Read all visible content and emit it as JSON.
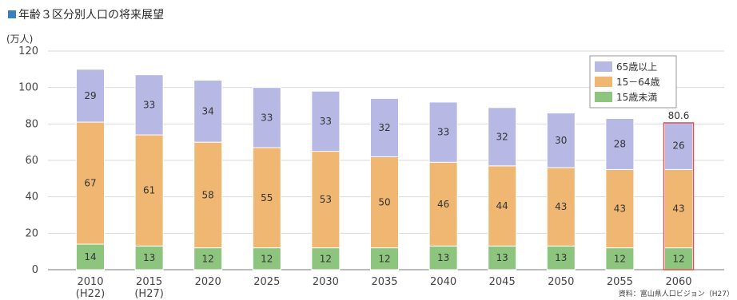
{
  "header": {
    "title": "年齢３区分別人口の将来展望",
    "unit": "(万人)",
    "source": "資料：富山県人口ビジョン（H27）"
  },
  "colors": {
    "title_marker": "#3a7fc0",
    "grid": "#d9d9d9",
    "highlight_border": "#e05050"
  },
  "chart_data": {
    "type": "bar",
    "stacked": true,
    "categories": [
      "2010",
      "2015",
      "2020",
      "2025",
      "2030",
      "2035",
      "2040",
      "2045",
      "2050",
      "2055",
      "2060"
    ],
    "category_sublabels": [
      "(H22)",
      "(H27)",
      "",
      "",
      "",
      "",
      "",
      "",
      "",
      "",
      ""
    ],
    "series": [
      {
        "name": "15歳未満",
        "color": "#8dc57e",
        "values": [
          14,
          13,
          12,
          12,
          12,
          12,
          13,
          13,
          13,
          12,
          12
        ]
      },
      {
        "name": "15－64歳",
        "color": "#efb771",
        "values": [
          67,
          61,
          58,
          55,
          53,
          50,
          46,
          44,
          43,
          43,
          43
        ]
      },
      {
        "name": "65歳以上",
        "color": "#b7b8e4",
        "values": [
          29,
          33,
          34,
          33,
          33,
          32,
          33,
          32,
          30,
          28,
          26
        ]
      }
    ],
    "totals_display": [
      "",
      "",
      "",
      "",
      "",
      "",
      "",
      "",
      "",
      "",
      "80.6"
    ],
    "legend_order": [
      "65歳以上",
      "15－64歳",
      "15歳未満"
    ],
    "legend_position": "top-right",
    "highlight_category": "2060",
    "ylim": [
      0,
      120
    ],
    "yticks": [
      0,
      20,
      40,
      60,
      80,
      100,
      120
    ],
    "grid": true
  }
}
